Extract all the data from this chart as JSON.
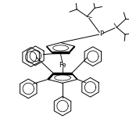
{
  "background": "#ffffff",
  "line_color": "#000000",
  "fe_label": "Fe",
  "p_label": "P",
  "figsize": [
    1.65,
    1.74
  ],
  "dpi": 100,
  "lw": 0.7
}
